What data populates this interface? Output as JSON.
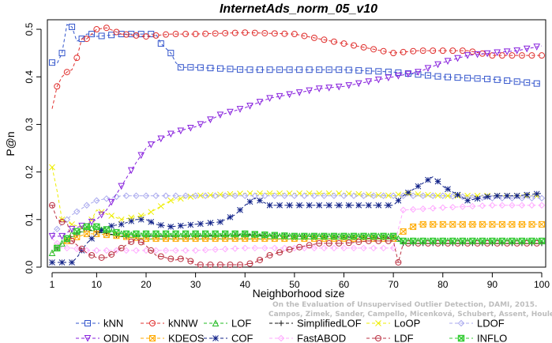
{
  "chart_data": {
    "type": "line",
    "title": "InternetAds_norm_05_v10",
    "xlabel": "Neighborhood size",
    "ylabel": "P@n",
    "xlim": [
      1,
      100
    ],
    "ylim": [
      0,
      0.52
    ],
    "xticks": [
      1,
      10,
      20,
      30,
      40,
      50,
      60,
      70,
      80,
      90,
      100
    ],
    "yticks": [
      0.0,
      0.1,
      0.2,
      0.3,
      0.4,
      0.5
    ],
    "ytick_labels": [
      "0.0",
      "0.1",
      "0.2",
      "0.3",
      "0.4",
      "0.5"
    ],
    "grid": false,
    "legend_position": "bottom",
    "watermark_lines": [
      "Campos, Zimek, Sander, Campello, Micenková, Schubert, Assent, Houle",
      "On the Evaluation of Unsupervised Outlier Detection, DAMI, 2015."
    ],
    "series": [
      {
        "name": "kNN",
        "color": "#3355cc",
        "marker": "square",
        "points": [
          [
            1,
            0.43
          ],
          [
            2,
            0.428
          ],
          [
            3,
            0.45
          ],
          [
            4,
            0.51
          ],
          [
            5,
            0.505
          ],
          [
            6,
            0.475
          ],
          [
            7,
            0.48
          ],
          [
            8,
            0.49
          ],
          [
            9,
            0.49
          ],
          [
            10,
            0.485
          ],
          [
            15,
            0.49
          ],
          [
            20,
            0.49
          ],
          [
            22,
            0.49
          ],
          [
            23,
            0.47
          ],
          [
            25,
            0.45
          ],
          [
            26,
            0.43
          ],
          [
            27,
            0.42
          ],
          [
            30,
            0.42
          ],
          [
            40,
            0.415
          ],
          [
            50,
            0.415
          ],
          [
            60,
            0.415
          ],
          [
            70,
            0.41
          ],
          [
            80,
            0.4
          ],
          [
            90,
            0.395
          ],
          [
            95,
            0.39
          ],
          [
            100,
            0.385
          ]
        ]
      },
      {
        "name": "kNNW",
        "color": "#e0312f",
        "marker": "circle",
        "points": [
          [
            1,
            0.333
          ],
          [
            2,
            0.38
          ],
          [
            3,
            0.4
          ],
          [
            4,
            0.41
          ],
          [
            5,
            0.415
          ],
          [
            6,
            0.44
          ],
          [
            7,
            0.48
          ],
          [
            8,
            0.48
          ],
          [
            9,
            0.49
          ],
          [
            10,
            0.5
          ],
          [
            12,
            0.503
          ],
          [
            15,
            0.49
          ],
          [
            20,
            0.485
          ],
          [
            25,
            0.49
          ],
          [
            30,
            0.49
          ],
          [
            40,
            0.493
          ],
          [
            50,
            0.49
          ],
          [
            55,
            0.48
          ],
          [
            60,
            0.47
          ],
          [
            65,
            0.46
          ],
          [
            70,
            0.45
          ],
          [
            75,
            0.455
          ],
          [
            80,
            0.455
          ],
          [
            85,
            0.455
          ],
          [
            90,
            0.445
          ],
          [
            100,
            0.445
          ]
        ]
      },
      {
        "name": "LOF",
        "color": "#22bb22",
        "marker": "triangle-up",
        "points": [
          [
            1,
            0.03
          ],
          [
            3,
            0.05
          ],
          [
            5,
            0.07
          ],
          [
            8,
            0.085
          ],
          [
            10,
            0.08
          ],
          [
            15,
            0.07
          ],
          [
            20,
            0.065
          ],
          [
            30,
            0.065
          ],
          [
            40,
            0.065
          ],
          [
            50,
            0.065
          ],
          [
            60,
            0.065
          ],
          [
            70,
            0.065
          ],
          [
            72,
            0.055
          ],
          [
            80,
            0.055
          ],
          [
            90,
            0.055
          ],
          [
            100,
            0.055
          ]
        ]
      },
      {
        "name": "SimplifiedLOF",
        "color": "#111111",
        "marker": "plus",
        "points": [
          [
            1,
            0.03
          ],
          [
            3,
            0.05
          ],
          [
            5,
            0.065
          ],
          [
            8,
            0.08
          ],
          [
            10,
            0.075
          ],
          [
            15,
            0.065
          ],
          [
            20,
            0.065
          ],
          [
            30,
            0.065
          ],
          [
            40,
            0.068
          ],
          [
            50,
            0.065
          ],
          [
            60,
            0.063
          ],
          [
            70,
            0.063
          ],
          [
            72,
            0.05
          ],
          [
            80,
            0.05
          ],
          [
            90,
            0.05
          ],
          [
            100,
            0.05
          ]
        ]
      },
      {
        "name": "LoOP",
        "color": "#eeee00",
        "marker": "x",
        "points": [
          [
            1,
            0.21
          ],
          [
            2,
            0.16
          ],
          [
            3,
            0.1
          ],
          [
            5,
            0.09
          ],
          [
            8,
            0.08
          ],
          [
            10,
            0.12
          ],
          [
            15,
            0.1
          ],
          [
            20,
            0.11
          ],
          [
            25,
            0.14
          ],
          [
            30,
            0.15
          ],
          [
            40,
            0.155
          ],
          [
            50,
            0.155
          ],
          [
            60,
            0.155
          ],
          [
            70,
            0.15
          ],
          [
            72,
            0.155
          ],
          [
            80,
            0.15
          ],
          [
            90,
            0.15
          ],
          [
            100,
            0.15
          ]
        ]
      },
      {
        "name": "LDOF",
        "color": "#aaaaee",
        "marker": "diamond",
        "points": [
          [
            1,
            0.07
          ],
          [
            3,
            0.09
          ],
          [
            5,
            0.11
          ],
          [
            8,
            0.13
          ],
          [
            10,
            0.14
          ],
          [
            15,
            0.15
          ],
          [
            20,
            0.15
          ],
          [
            30,
            0.15
          ],
          [
            40,
            0.15
          ],
          [
            50,
            0.15
          ],
          [
            60,
            0.15
          ],
          [
            70,
            0.15
          ],
          [
            80,
            0.15
          ],
          [
            90,
            0.145
          ],
          [
            100,
            0.145
          ]
        ]
      },
      {
        "name": "ODIN",
        "color": "#8822dd",
        "marker": "triangle-down",
        "points": [
          [
            1,
            0.065
          ],
          [
            3,
            0.065
          ],
          [
            5,
            0.08
          ],
          [
            8,
            0.09
          ],
          [
            10,
            0.1
          ],
          [
            12,
            0.12
          ],
          [
            15,
            0.17
          ],
          [
            18,
            0.22
          ],
          [
            20,
            0.25
          ],
          [
            22,
            0.265
          ],
          [
            25,
            0.28
          ],
          [
            28,
            0.29
          ],
          [
            30,
            0.295
          ],
          [
            35,
            0.32
          ],
          [
            40,
            0.335
          ],
          [
            45,
            0.355
          ],
          [
            50,
            0.365
          ],
          [
            55,
            0.375
          ],
          [
            60,
            0.38
          ],
          [
            65,
            0.39
          ],
          [
            70,
            0.4
          ],
          [
            75,
            0.41
          ],
          [
            80,
            0.43
          ],
          [
            85,
            0.445
          ],
          [
            90,
            0.45
          ],
          [
            95,
            0.455
          ],
          [
            100,
            0.465
          ]
        ]
      },
      {
        "name": "KDEOS",
        "color": "#ffaa00",
        "marker": "square-cross",
        "points": [
          [
            1,
            0.03
          ],
          [
            3,
            0.05
          ],
          [
            5,
            0.06
          ],
          [
            8,
            0.07
          ],
          [
            10,
            0.07
          ],
          [
            15,
            0.065
          ],
          [
            20,
            0.06
          ],
          [
            30,
            0.06
          ],
          [
            40,
            0.06
          ],
          [
            50,
            0.06
          ],
          [
            60,
            0.06
          ],
          [
            70,
            0.06
          ],
          [
            72,
            0.075
          ],
          [
            75,
            0.09
          ],
          [
            80,
            0.09
          ],
          [
            90,
            0.09
          ],
          [
            100,
            0.09
          ]
        ]
      },
      {
        "name": "COF",
        "color": "#112288",
        "marker": "asterisk",
        "points": [
          [
            1,
            0.01
          ],
          [
            3,
            0.01
          ],
          [
            5,
            0.01
          ],
          [
            6,
            0.02
          ],
          [
            8,
            0.05
          ],
          [
            10,
            0.07
          ],
          [
            12,
            0.085
          ],
          [
            15,
            0.09
          ],
          [
            18,
            0.1
          ],
          [
            20,
            0.1
          ],
          [
            22,
            0.09
          ],
          [
            25,
            0.085
          ],
          [
            30,
            0.09
          ],
          [
            35,
            0.095
          ],
          [
            38,
            0.11
          ],
          [
            40,
            0.13
          ],
          [
            42,
            0.145
          ],
          [
            45,
            0.13
          ],
          [
            50,
            0.13
          ],
          [
            60,
            0.13
          ],
          [
            70,
            0.13
          ],
          [
            72,
            0.15
          ],
          [
            75,
            0.17
          ],
          [
            78,
            0.19
          ],
          [
            80,
            0.17
          ],
          [
            85,
            0.14
          ],
          [
            90,
            0.15
          ],
          [
            95,
            0.15
          ],
          [
            100,
            0.155
          ]
        ]
      },
      {
        "name": "FastABOD",
        "color": "#ffaaff",
        "marker": "diamond-small",
        "points": [
          [
            1,
            0.06
          ],
          [
            3,
            0.04
          ],
          [
            5,
            0.04
          ],
          [
            8,
            0.035
          ],
          [
            10,
            0.035
          ],
          [
            15,
            0.035
          ],
          [
            20,
            0.035
          ],
          [
            30,
            0.035
          ],
          [
            40,
            0.04
          ],
          [
            50,
            0.04
          ],
          [
            60,
            0.04
          ],
          [
            70,
            0.04
          ],
          [
            72,
            0.12
          ],
          [
            80,
            0.125
          ],
          [
            90,
            0.13
          ],
          [
            100,
            0.13
          ]
        ]
      },
      {
        "name": "LDF",
        "color": "#bb3344",
        "marker": "circle-minus",
        "points": [
          [
            1,
            0.13
          ],
          [
            2,
            0.1
          ],
          [
            3,
            0.095
          ],
          [
            4,
            0.095
          ],
          [
            5,
            0.055
          ],
          [
            8,
            0.03
          ],
          [
            10,
            0.02
          ],
          [
            12,
            0.02
          ],
          [
            15,
            0.04
          ],
          [
            18,
            0.06
          ],
          [
            20,
            0.045
          ],
          [
            22,
            0.025
          ],
          [
            24,
            0.02
          ],
          [
            26,
            0.015
          ],
          [
            28,
            0.02
          ],
          [
            30,
            0.005
          ],
          [
            35,
            0.005
          ],
          [
            40,
            0.005
          ],
          [
            42,
            0.01
          ],
          [
            45,
            0.025
          ],
          [
            50,
            0.04
          ],
          [
            55,
            0.05
          ],
          [
            60,
            0.05
          ],
          [
            65,
            0.055
          ],
          [
            70,
            0.055
          ],
          [
            71,
            0.01
          ],
          [
            72,
            0.05
          ],
          [
            80,
            0.05
          ],
          [
            90,
            0.05
          ],
          [
            100,
            0.05
          ]
        ]
      },
      {
        "name": "INFLO",
        "color": "#33cc33",
        "marker": "hourglass",
        "points": [
          [
            1,
            0.03
          ],
          [
            3,
            0.05
          ],
          [
            5,
            0.07
          ],
          [
            8,
            0.085
          ],
          [
            10,
            0.085
          ],
          [
            15,
            0.07
          ],
          [
            20,
            0.07
          ],
          [
            30,
            0.07
          ],
          [
            40,
            0.07
          ],
          [
            50,
            0.065
          ],
          [
            60,
            0.065
          ],
          [
            70,
            0.065
          ],
          [
            72,
            0.055
          ],
          [
            80,
            0.055
          ],
          [
            90,
            0.055
          ],
          [
            100,
            0.055
          ]
        ]
      }
    ]
  }
}
